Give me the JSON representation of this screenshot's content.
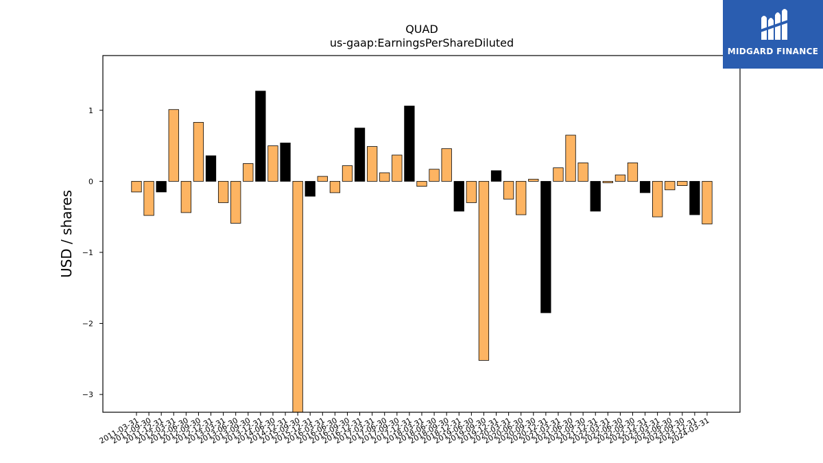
{
  "title": "QUAD",
  "subtitle": "us-gaap:EarningsPerShareDiluted",
  "logo": {
    "text": "MIDGARD FINANCE",
    "background": "#2a5db0"
  },
  "colors": {
    "bar_primary": "#fdb462",
    "bar_alt": "#000000"
  },
  "chart_data": {
    "type": "bar",
    "title": "QUAD",
    "subtitle": "us-gaap:EarningsPerShareDiluted",
    "xlabel": "",
    "ylabel": "USD / shares",
    "ylim": [
      -3.25,
      1.77
    ],
    "yticks": [
      1,
      0,
      -1,
      -2,
      -3
    ],
    "ytick_labels": [
      "1",
      "0",
      "−1",
      "−2",
      "−3"
    ],
    "grid": false,
    "categories": [
      "2011-03-31",
      "2011-09-30",
      "2011-12-31",
      "2012-03-31",
      "2012-06-30",
      "2012-09-30",
      "2012-12-31",
      "2013-03-31",
      "2013-06-30",
      "2013-09-30",
      "2013-12-31",
      "2014-06-30",
      "2014-12-31",
      "2015-09-30",
      "2015-12-31",
      "2016-03-31",
      "2016-06-30",
      "2016-09-30",
      "2016-12-31",
      "2017-03-31",
      "2017-06-30",
      "2017-09-30",
      "2017-12-31",
      "2018-03-31",
      "2018-06-30",
      "2018-09-30",
      "2018-12-31",
      "2019-06-30",
      "2019-09-30",
      "2019-12-31",
      "2020-03-31",
      "2020-06-30",
      "2020-09-30",
      "2020-12-31",
      "2021-03-31",
      "2021-06-30",
      "2021-09-30",
      "2021-12-31",
      "2022-03-31",
      "2022-06-30",
      "2022-09-30",
      "2022-12-31",
      "2023-03-31",
      "2023-06-30",
      "2023-09-30",
      "2023-12-31",
      "2024-03-31"
    ],
    "values": [
      -0.15,
      -0.48,
      -0.15,
      1.01,
      -0.44,
      0.83,
      0.36,
      -0.3,
      -0.59,
      0.25,
      1.27,
      0.5,
      0.54,
      -3.25,
      -0.21,
      0.07,
      -0.16,
      0.22,
      0.75,
      0.49,
      0.12,
      0.37,
      1.06,
      -0.07,
      0.17,
      0.46,
      -0.42,
      -0.3,
      -2.52,
      0.15,
      -0.25,
      -0.47,
      0.03,
      -1.85,
      0.19,
      0.65,
      0.26,
      -0.42,
      -0.02,
      0.09,
      0.26,
      -0.16,
      -0.5,
      -0.12,
      -0.06,
      -0.47,
      -0.6
    ],
    "bar_colors": [
      "orange",
      "orange",
      "black",
      "orange",
      "orange",
      "orange",
      "black",
      "orange",
      "orange",
      "orange",
      "black",
      "orange",
      "black",
      "orange",
      "black",
      "orange",
      "orange",
      "orange",
      "black",
      "orange",
      "orange",
      "orange",
      "black",
      "orange",
      "orange",
      "orange",
      "black",
      "orange",
      "orange",
      "black",
      "orange",
      "orange",
      "orange",
      "black",
      "orange",
      "orange",
      "orange",
      "black",
      "orange",
      "orange",
      "orange",
      "black",
      "orange",
      "orange",
      "orange",
      "black",
      "orange"
    ]
  }
}
